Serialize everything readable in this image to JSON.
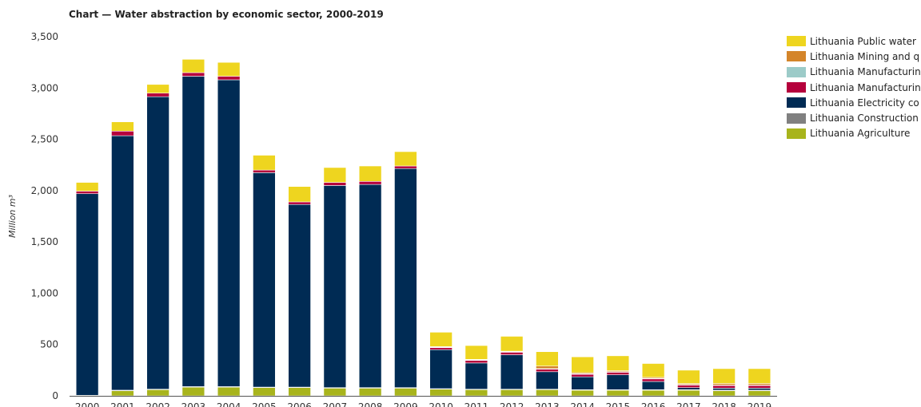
{
  "chart_data": {
    "type": "bar",
    "stacked": true,
    "title": "Chart — Water abstraction by economic sector, 2000-2019",
    "ylabel": "Million m³",
    "xlabel": "",
    "ylim": [
      0,
      3500
    ],
    "yticks": [
      0,
      500,
      1000,
      1500,
      2000,
      2500,
      3000,
      3500
    ],
    "ytick_labels": [
      "0",
      "500",
      "1,000",
      "1,500",
      "2,000",
      "2,500",
      "3,000",
      "3,500"
    ],
    "legend_position": "top-right",
    "categories": [
      "2000",
      "2001",
      "2002",
      "2003",
      "2004",
      "2005",
      "2006",
      "2007",
      "2008",
      "2009",
      "2010",
      "2011",
      "2012",
      "2013",
      "2014",
      "2015",
      "2016",
      "2017",
      "2018",
      "2019"
    ],
    "series": [
      {
        "name": "Lithuania Agriculture",
        "color": "#a8b41c",
        "values": [
          5,
          50,
          60,
          85,
          85,
          80,
          80,
          75,
          75,
          75,
          65,
          60,
          60,
          60,
          55,
          55,
          55,
          55,
          50,
          50
        ]
      },
      {
        "name": "Lithuania Construction",
        "color": "#808080",
        "values": [
          0,
          5,
          5,
          5,
          5,
          5,
          5,
          5,
          5,
          5,
          5,
          5,
          5,
          5,
          5,
          5,
          5,
          5,
          5,
          5
        ]
      },
      {
        "name": "Lithuania Electricity co",
        "color": "#002b54",
        "values": [
          1965,
          2480,
          2850,
          3025,
          2990,
          2090,
          1780,
          1970,
          1980,
          2135,
          380,
          255,
          335,
          170,
          125,
          145,
          80,
          20,
          20,
          20
        ]
      },
      {
        "name": "Lithuania Manufacturin",
        "color": "#b5003c",
        "values": [
          25,
          45,
          35,
          35,
          35,
          25,
          25,
          30,
          30,
          25,
          20,
          25,
          25,
          25,
          25,
          25,
          25,
          25,
          25,
          25
        ]
      },
      {
        "name": "Lithuania Manufacturin",
        "color": "#9ccbc8",
        "values": [
          0,
          0,
          0,
          0,
          0,
          0,
          0,
          0,
          0,
          0,
          5,
          5,
          5,
          5,
          5,
          5,
          5,
          5,
          5,
          5
        ]
      },
      {
        "name": "Lithuania Mining and q",
        "color": "#d4852a",
        "values": [
          0,
          0,
          0,
          0,
          0,
          0,
          0,
          0,
          0,
          0,
          5,
          5,
          5,
          25,
          10,
          10,
          10,
          10,
          15,
          15
        ]
      },
      {
        "name": "Lithuania Public water",
        "color": "#eed51f",
        "values": [
          85,
          90,
          85,
          130,
          135,
          145,
          150,
          145,
          150,
          140,
          140,
          135,
          145,
          140,
          155,
          145,
          135,
          130,
          145,
          145
        ]
      }
    ],
    "legend_order": [
      6,
      5,
      4,
      3,
      2,
      1,
      0
    ]
  }
}
